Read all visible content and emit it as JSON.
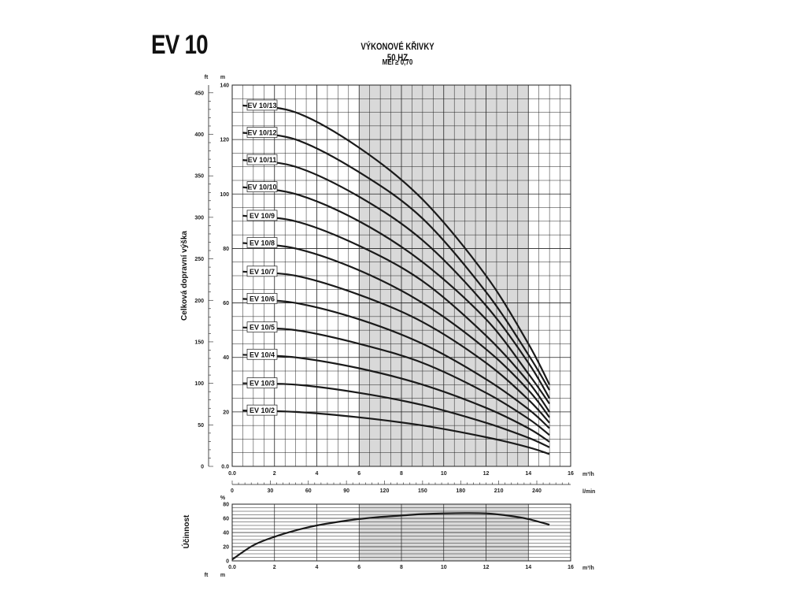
{
  "header": {
    "title": "EV 10",
    "chart_title": "VÝKONOVÉ KŘIVKY 50 HZ",
    "chart_subtitle": "MEI ≥ 0,70"
  },
  "colors": {
    "curve": "#1a1a1a",
    "grid": "#222222",
    "shaded_region": "#d9d9d9"
  },
  "chart_data": [
    {
      "type": "line",
      "title": "VÝKONOVÉ KŘIVKY 50 HZ",
      "subtitle": "MEI ≥ 0,70",
      "ylabel": "Celková dopravní výška",
      "xunit": "m³/h",
      "xunit_secondary": "l/min",
      "yunit": "m",
      "yunit_secondary": "ft",
      "xlim": [
        0,
        16
      ],
      "ylim": [
        0,
        140
      ],
      "x_ticks": [
        "0.0",
        "2",
        "4",
        "6",
        "8",
        "10",
        "12",
        "14",
        "16"
      ],
      "y_ticks": [
        "0.0",
        "20",
        "40",
        "60",
        "80",
        "100",
        "120",
        "140"
      ],
      "y_ticks_secondary": [
        "0",
        "50",
        "100",
        "150",
        "200",
        "250",
        "300",
        "350",
        "400",
        "450"
      ],
      "x_ticks_secondary": [
        "0",
        "30",
        "60",
        "90",
        "120",
        "150",
        "180",
        "210",
        "240"
      ],
      "shaded_range": [
        6,
        14
      ],
      "grid": true,
      "series": [
        {
          "name": "EV 10/13",
          "x": [
            0.5,
            3,
            6,
            9,
            12,
            14,
            15
          ],
          "y": [
            132.5,
            130,
            117,
            98,
            70,
            45,
            30
          ]
        },
        {
          "name": "EV 10/12",
          "x": [
            0.5,
            3,
            6,
            9,
            12,
            14,
            15
          ],
          "y": [
            122.5,
            120,
            108,
            91,
            64,
            41,
            28
          ]
        },
        {
          "name": "EV 10/11",
          "x": [
            0.5,
            3,
            6,
            9,
            12,
            14,
            15
          ],
          "y": [
            112.5,
            110,
            99,
            83,
            59,
            38,
            25
          ]
        },
        {
          "name": "EV 10/10",
          "x": [
            0.5,
            3,
            6,
            9,
            12,
            14,
            15
          ],
          "y": [
            102.5,
            100,
            90,
            75,
            54,
            34,
            23
          ]
        },
        {
          "name": "EV 10/9",
          "x": [
            0.5,
            3,
            6,
            9,
            12,
            14,
            15
          ],
          "y": [
            92,
            90,
            81,
            68,
            48,
            31,
            20
          ]
        },
        {
          "name": "EV 10/8",
          "x": [
            0.5,
            3,
            6,
            9,
            12,
            14,
            15
          ],
          "y": [
            82,
            80,
            72,
            60,
            43,
            28,
            18
          ]
        },
        {
          "name": "EV 10/7",
          "x": [
            0.5,
            3,
            6,
            9,
            12,
            14,
            15
          ],
          "y": [
            71.5,
            70,
            63,
            53,
            38,
            24.5,
            16
          ]
        },
        {
          "name": "EV 10/6",
          "x": [
            0.5,
            3,
            6,
            9,
            12,
            14,
            15
          ],
          "y": [
            61.5,
            60,
            54,
            45,
            32,
            21,
            14
          ]
        },
        {
          "name": "EV 10/5",
          "x": [
            0.5,
            3,
            6,
            9,
            12,
            14,
            15
          ],
          "y": [
            51,
            50,
            45,
            38,
            27,
            17.5,
            11.5
          ]
        },
        {
          "name": "EV 10/4",
          "x": [
            0.5,
            3,
            6,
            9,
            12,
            14,
            15
          ],
          "y": [
            41,
            40,
            36,
            30,
            21.5,
            14,
            9
          ]
        },
        {
          "name": "EV 10/3",
          "x": [
            0.5,
            3,
            6,
            9,
            12,
            14,
            15
          ],
          "y": [
            30.5,
            30,
            27,
            22.5,
            16,
            10.5,
            7
          ]
        },
        {
          "name": "EV 10/2",
          "x": [
            0.5,
            3,
            6,
            9,
            12,
            14,
            15
          ],
          "y": [
            20.5,
            20,
            18,
            15,
            10.7,
            7,
            4.5
          ]
        }
      ]
    },
    {
      "type": "line",
      "ylabel": "Účinnost",
      "yunit": "%",
      "xunit": "m³/h",
      "xlim": [
        0,
        16
      ],
      "ylim": [
        0,
        80
      ],
      "x_ticks": [
        "0.0",
        "2",
        "4",
        "6",
        "8",
        "10",
        "12",
        "14",
        "16"
      ],
      "y_ticks": [
        "0",
        "20",
        "40",
        "60",
        "80"
      ],
      "bottom_units": [
        "ft",
        "m"
      ],
      "shaded_range": [
        6,
        14
      ],
      "grid": true,
      "series": [
        {
          "x": [
            0,
            1,
            2,
            3,
            4,
            5,
            6,
            7,
            8,
            9,
            10,
            11,
            12,
            13,
            14,
            15
          ],
          "y": [
            2,
            22,
            34,
            43,
            50,
            55,
            59,
            62,
            64,
            66,
            67,
            67.5,
            67,
            64,
            59,
            51
          ]
        }
      ]
    }
  ]
}
